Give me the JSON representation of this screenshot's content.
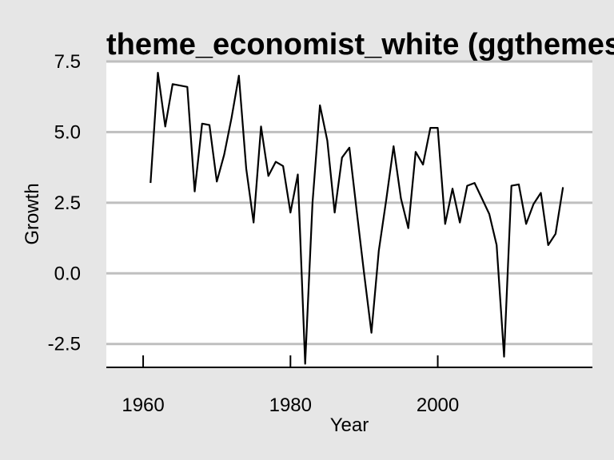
{
  "chart_data": {
    "type": "line",
    "title": "theme_economist_white (ggthemes)",
    "xlabel": "Year",
    "ylabel": "Growth",
    "xlim": [
      1955,
      2021
    ],
    "ylim": [
      -3.3,
      7.5
    ],
    "x_ticks": [
      1960,
      1980,
      2000
    ],
    "x_tick_labels": [
      "1960",
      "1980",
      "2000"
    ],
    "y_ticks": [
      -2.5,
      0.0,
      2.5,
      5.0,
      7.5
    ],
    "y_tick_labels": [
      "-2.5",
      "0.0",
      "2.5",
      "5.0",
      "7.5"
    ],
    "grid": "horizontal",
    "colors": {
      "background": "#e6e6e6",
      "panel": "#ffffff",
      "grid": "#bfbfbf",
      "line": "#000000"
    },
    "series": [
      {
        "x": [
          1961,
          1962,
          1963,
          1964,
          1965,
          1966,
          1967,
          1968,
          1969,
          1970,
          1971,
          1972,
          1973,
          1974,
          1975,
          1976,
          1977,
          1978,
          1979,
          1980,
          1981,
          1982,
          1983,
          1984,
          1985,
          1986,
          1987,
          1988,
          1989,
          1990,
          1991,
          1992,
          1993,
          1994,
          1995,
          1996,
          1997,
          1998,
          1999,
          2000,
          2001,
          2002,
          2003,
          2004,
          2005,
          2006,
          2007,
          2008,
          2009,
          2010,
          2011,
          2012,
          2013,
          2014,
          2015,
          2016,
          2017
        ],
        "values": [
          3.2,
          7.1,
          5.2,
          6.7,
          6.65,
          6.6,
          2.9,
          5.3,
          5.25,
          3.25,
          4.2,
          5.5,
          7.0,
          3.7,
          1.8,
          5.2,
          3.45,
          3.95,
          3.8,
          2.15,
          3.5,
          -3.2,
          2.5,
          5.95,
          4.7,
          2.15,
          4.1,
          4.45,
          2.2,
          0.0,
          -2.1,
          0.8,
          2.6,
          4.5,
          2.65,
          1.6,
          4.3,
          3.85,
          5.15,
          5.15,
          1.75,
          3.0,
          1.8,
          3.1,
          3.2,
          2.65,
          2.1,
          1.0,
          -2.95,
          3.1,
          3.15,
          1.75,
          2.45,
          2.85,
          1.0,
          1.4,
          3.05
        ]
      }
    ]
  }
}
